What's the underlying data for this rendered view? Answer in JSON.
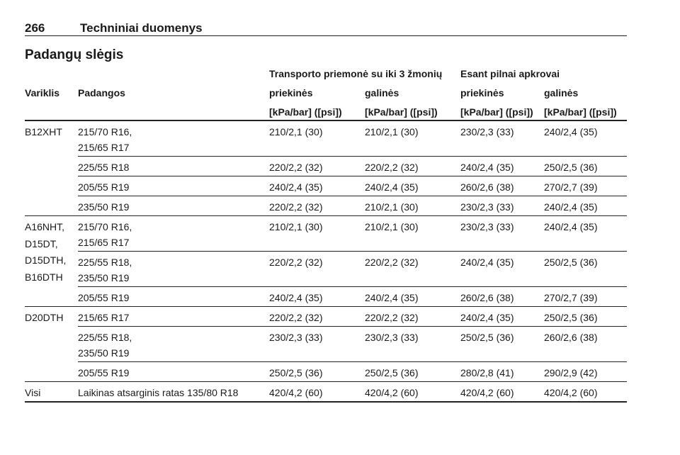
{
  "header": {
    "page_number": "266",
    "title": "Techniniai duomenys"
  },
  "section_title": "Padangų slėgis",
  "table": {
    "group_headers": [
      "Transporto priemonė su iki 3 žmonių",
      "Esant pilnai apkrovai"
    ],
    "columns": [
      "Variklis",
      "Padangos",
      "priekinės",
      "galinės",
      "priekinės",
      "galinės"
    ],
    "units": [
      "[kPa/bar] ([psi])",
      "[kPa/bar] ([psi])",
      "[kPa/bar] ([psi])",
      "[kPa/bar] ([psi])"
    ],
    "groups": [
      {
        "engine": [
          "B12XHT"
        ],
        "rows": [
          {
            "tires": [
              "215/70 R16,",
              "215/65 R17"
            ],
            "values": [
              "210/2,1 (30)",
              "210/2,1 (30)",
              "230/2,3 (33)",
              "240/2,4 (35)"
            ]
          },
          {
            "tires": [
              "225/55 R18"
            ],
            "values": [
              "220/2,2 (32)",
              "220/2,2 (32)",
              "240/2,4 (35)",
              "250/2,5 (36)"
            ]
          },
          {
            "tires": [
              "205/55 R19"
            ],
            "values": [
              "240/2,4 (35)",
              "240/2,4 (35)",
              "260/2,6 (38)",
              "270/2,7 (39)"
            ]
          },
          {
            "tires": [
              "235/50 R19"
            ],
            "values": [
              "220/2,2 (32)",
              "210/2,1 (30)",
              "230/2,3 (33)",
              "240/2,4 (35)"
            ]
          }
        ]
      },
      {
        "engine": [
          "A16NHT,",
          "D15DT,",
          "D15DTH,",
          "B16DTH"
        ],
        "rows": [
          {
            "tires": [
              "215/70 R16,",
              "215/65 R17"
            ],
            "values": [
              "210/2,1 (30)",
              "210/2,1 (30)",
              "230/2,3 (33)",
              "240/2,4 (35)"
            ]
          },
          {
            "tires": [
              "225/55 R18,",
              "235/50 R19"
            ],
            "values": [
              "220/2,2 (32)",
              "220/2,2 (32)",
              "240/2,4 (35)",
              "250/2,5 (36)"
            ]
          },
          {
            "tires": [
              "205/55 R19"
            ],
            "values": [
              "240/2,4 (35)",
              "240/2,4 (35)",
              "260/2,6 (38)",
              "270/2,7 (39)"
            ]
          }
        ]
      },
      {
        "engine": [
          "D20DTH"
        ],
        "rows": [
          {
            "tires": [
              "215/65 R17"
            ],
            "values": [
              "220/2,2 (32)",
              "220/2,2 (32)",
              "240/2,4 (35)",
              "250/2,5 (36)"
            ]
          },
          {
            "tires": [
              "225/55 R18,",
              "235/50 R19"
            ],
            "values": [
              "230/2,3 (33)",
              "230/2,3 (33)",
              "250/2,5 (36)",
              "260/2,6 (38)"
            ]
          },
          {
            "tires": [
              "205/55 R19"
            ],
            "values": [
              "250/2,5 (36)",
              "250/2,5 (36)",
              "280/2,8 (41)",
              "290/2,9 (42)"
            ]
          }
        ]
      },
      {
        "engine": [
          "Visi"
        ],
        "rows": [
          {
            "tires": [
              "Laikinas atsarginis ratas 135/80 R18"
            ],
            "values": [
              "420/4,2 (60)",
              "420/4,2 (60)",
              "420/4,2 (60)",
              "420/4,2 (60)"
            ]
          }
        ]
      }
    ]
  }
}
